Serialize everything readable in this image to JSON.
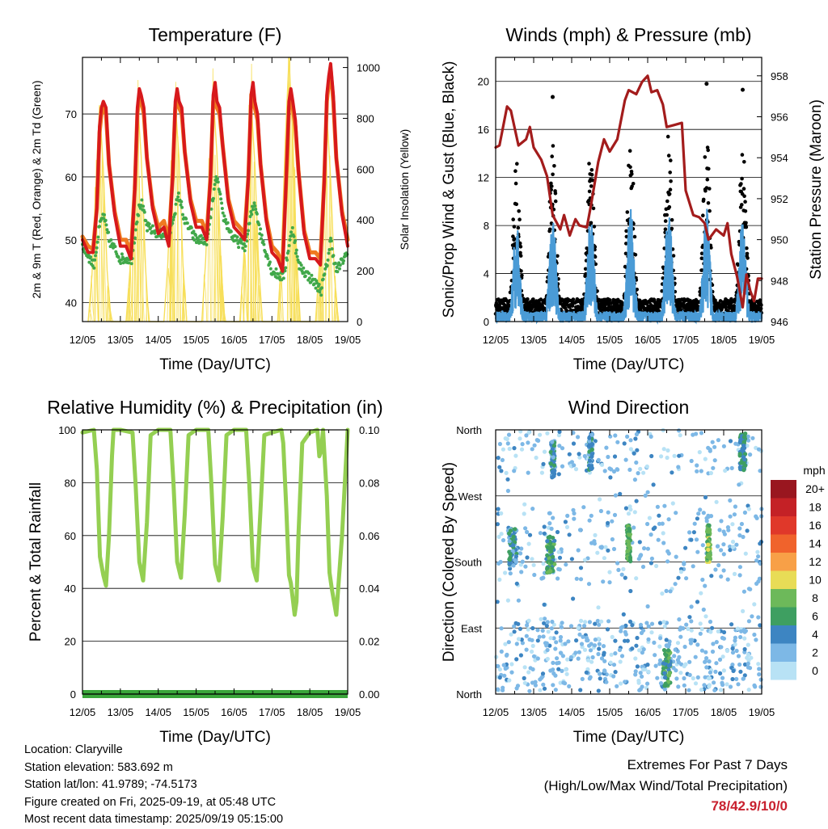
{
  "colors": {
    "temp_2m": "#d7191c",
    "temp_9m": "#ef7a21",
    "dewpoint": "#41a84a",
    "solar": "#f7df5a",
    "gust": "#000000",
    "wind": "#4a9bd6",
    "pressure": "#a31c1c",
    "rh": "#94cf52",
    "precip": "#3aa53a",
    "extremes_value": "#c8202e"
  },
  "footer": {
    "location": "Location: Claryville",
    "elevation": "Station elevation: 583.692 m",
    "latlon": "Station lat/lon: 41.9789; -74.5173",
    "created": "Figure created on Fri, 2025-09-19, at 05:48 UTC",
    "recent": "Most recent data timestamp: 2025/09/19 05:15:00"
  },
  "extremes": {
    "title": "Extremes For Past 7 Days",
    "subtitle": "(High/Low/Max Wind/Total Precipitation)",
    "value": "78/42.9/10/0"
  },
  "chart_data": [
    {
      "id": "temperature",
      "type": "line",
      "title": "Temperature (F)",
      "xlabel": "Time (Day/UTC)",
      "ylabel": "2m & 9m T (Red, Orange) & 2m Td (Green)",
      "ylabel_right": "Solar Insolation (Yellow)",
      "xticks": [
        "12/05",
        "13/05",
        "14/05",
        "15/05",
        "16/05",
        "17/05",
        "18/05",
        "19/05"
      ],
      "xlim": [
        0,
        7
      ],
      "ylim": [
        37,
        79
      ],
      "yticks": [
        40,
        50,
        60,
        70
      ],
      "ylim_right": [
        0,
        1040
      ],
      "yticks_right": [
        0,
        200,
        400,
        600,
        800,
        1000
      ],
      "grid": true,
      "series": [
        {
          "color_key": "temp_2m",
          "x": [
            0,
            0.15,
            0.28,
            0.38,
            0.45,
            0.5,
            0.55,
            0.62,
            0.7,
            0.85,
            1,
            1.15,
            1.28,
            1.38,
            1.45,
            1.5,
            1.55,
            1.62,
            1.7,
            1.85,
            2,
            2.15,
            2.28,
            2.38,
            2.45,
            2.5,
            2.55,
            2.62,
            2.7,
            2.85,
            3,
            3.15,
            3.28,
            3.38,
            3.45,
            3.5,
            3.55,
            3.62,
            3.7,
            3.85,
            4,
            4.15,
            4.28,
            4.38,
            4.45,
            4.5,
            4.55,
            4.62,
            4.7,
            4.85,
            5,
            5.15,
            5.28,
            5.38,
            5.45,
            5.5,
            5.55,
            5.62,
            5.7,
            5.85,
            6,
            6.15,
            6.28,
            6.38,
            6.45,
            6.5,
            6.55,
            6.62,
            6.7,
            6.85,
            7
          ],
          "y": [
            50,
            48,
            48,
            55,
            68,
            71,
            72,
            71,
            62,
            54,
            49,
            49,
            47,
            58,
            71,
            74,
            73,
            71,
            63,
            55,
            51,
            52,
            49,
            60,
            72,
            74,
            72,
            71,
            64,
            56,
            52,
            52,
            50,
            60,
            73,
            75,
            72,
            71,
            65,
            56,
            52,
            51,
            50,
            60,
            73,
            75,
            72,
            70,
            62,
            53,
            48,
            47,
            45,
            60,
            72,
            74,
            72,
            69,
            61,
            51,
            47,
            47,
            46,
            59,
            73,
            76,
            78,
            73,
            63,
            54,
            49
          ]
        },
        {
          "color_key": "temp_9m",
          "x": [
            0,
            0.15,
            0.28,
            0.38,
            0.45,
            0.5,
            0.55,
            0.62,
            0.7,
            0.85,
            1,
            1.15,
            1.28,
            1.38,
            1.45,
            1.5,
            1.55,
            1.62,
            1.7,
            1.85,
            2,
            2.15,
            2.28,
            2.38,
            2.45,
            2.5,
            2.55,
            2.62,
            2.7,
            2.85,
            3,
            3.15,
            3.28,
            3.38,
            3.45,
            3.5,
            3.55,
            3.62,
            3.7,
            3.85,
            4,
            4.15,
            4.28,
            4.38,
            4.45,
            4.5,
            4.55,
            4.62,
            4.7,
            4.85,
            5,
            5.15,
            5.28,
            5.38,
            5.45,
            5.5,
            5.55,
            5.62,
            5.7,
            5.85,
            6,
            6.15,
            6.28,
            6.38,
            6.45,
            6.5,
            6.55,
            6.62,
            6.7,
            6.85,
            7
          ],
          "y": [
            50.5,
            49,
            48.5,
            55,
            67,
            70,
            71,
            70,
            62,
            54.5,
            50,
            50,
            48,
            58,
            70,
            73,
            72,
            70,
            63,
            55.5,
            52,
            53,
            50,
            60,
            71,
            73,
            71,
            70,
            64,
            56.5,
            53,
            53,
            51,
            60,
            72,
            74,
            71,
            70,
            65,
            56.5,
            53,
            52,
            51,
            60,
            72,
            74,
            71,
            69,
            62,
            53.5,
            49,
            48,
            46,
            60,
            71,
            73,
            71,
            68,
            61,
            51.5,
            48,
            48,
            47,
            59,
            72,
            75,
            77,
            72,
            63,
            54.5,
            50
          ]
        },
        {
          "color_key": "dewpoint",
          "x": [
            0,
            0.3,
            0.45,
            0.55,
            0.7,
            1,
            1.3,
            1.45,
            1.55,
            1.7,
            2,
            2.3,
            2.45,
            2.55,
            2.7,
            3,
            3.3,
            3.45,
            3.55,
            3.7,
            4,
            4.3,
            4.45,
            4.55,
            4.7,
            5,
            5.3,
            5.45,
            5.55,
            5.7,
            6,
            6.3,
            6.45,
            6.55,
            6.7,
            7
          ],
          "y": [
            49,
            46,
            52,
            54,
            50,
            47,
            47,
            54,
            56,
            52,
            51,
            51,
            55,
            57,
            53,
            50,
            50,
            57,
            60,
            54,
            50,
            49,
            54,
            56,
            51,
            45,
            44,
            49,
            52,
            46,
            44,
            42,
            46,
            50,
            45,
            48
          ]
        },
        {
          "color_key": "solar",
          "axis": "right",
          "x": [
            0.15,
            0.25,
            0.35,
            0.45,
            0.55,
            0.65,
            0.75,
            1.15,
            1.25,
            1.35,
            1.45,
            1.55,
            1.65,
            1.75,
            2.15,
            2.25,
            2.35,
            2.45,
            2.55,
            2.65,
            2.75,
            3.15,
            3.25,
            3.35,
            3.45,
            3.55,
            3.65,
            3.75,
            4.15,
            4.25,
            4.35,
            4.45,
            4.55,
            4.65,
            4.75,
            5.15,
            5.25,
            5.35,
            5.45,
            5.55,
            5.65,
            5.75,
            6.15,
            6.25,
            6.35,
            6.45,
            6.55,
            6.65,
            6.75
          ],
          "y": [
            0,
            180,
            520,
            850,
            600,
            200,
            0,
            0,
            200,
            550,
            880,
            650,
            250,
            0,
            0,
            220,
            600,
            860,
            640,
            230,
            0,
            0,
            240,
            620,
            890,
            660,
            250,
            0,
            0,
            230,
            590,
            870,
            620,
            220,
            0,
            0,
            260,
            700,
            1040,
            720,
            260,
            0,
            0,
            220,
            580,
            820,
            560,
            180,
            0
          ]
        }
      ]
    },
    {
      "id": "winds",
      "type": "scatter",
      "title": "Winds (mph) & Pressure (mb)",
      "xlabel": "Time (Day/UTC)",
      "ylabel": "Sonic/Prop Wind & Gust (Blue, Black)",
      "ylabel_right": "Station Pressure (Maroon)",
      "xticks": [
        "12/05",
        "13/05",
        "14/05",
        "15/05",
        "16/05",
        "17/05",
        "18/05",
        "19/05"
      ],
      "xlim": [
        0,
        7
      ],
      "ylim": [
        0,
        22
      ],
      "yticks": [
        0,
        4,
        8,
        12,
        16,
        20
      ],
      "ylim_right": [
        946,
        958.9
      ],
      "yticks_right": [
        946,
        948,
        950,
        952,
        954,
        956,
        958
      ],
      "grid": true,
      "gust_peaks": [
        {
          "day": 0.55,
          "peak": 13
        },
        {
          "day": 1.5,
          "peak": 14
        },
        {
          "day": 2.5,
          "peak": 14
        },
        {
          "day": 3.55,
          "peak": 15
        },
        {
          "day": 4.55,
          "peak": 15
        },
        {
          "day": 5.55,
          "peak": 15
        },
        {
          "day": 6.5,
          "peak": 14
        }
      ],
      "gust_outliers": [
        {
          "x": 1.5,
          "y": 18.7
        },
        {
          "x": 5.55,
          "y": 19.8
        },
        {
          "x": 6.5,
          "y": 19.3
        }
      ],
      "pressure": {
        "x": [
          0,
          0.1,
          0.3,
          0.4,
          0.6,
          0.8,
          0.9,
          1.0,
          1.2,
          1.35,
          1.5,
          1.7,
          1.8,
          1.95,
          2.1,
          2.2,
          2.4,
          2.5,
          2.7,
          2.85,
          3.0,
          3.2,
          3.4,
          3.5,
          3.7,
          3.85,
          4.0,
          4.1,
          4.25,
          4.4,
          4.5,
          4.7,
          4.9,
          5.0,
          5.2,
          5.35,
          5.5,
          5.6,
          5.8,
          6.0,
          6.1,
          6.2,
          6.35,
          6.5,
          6.6,
          6.7,
          6.8,
          6.9,
          7.0
        ],
        "y": [
          954.5,
          954.6,
          956.5,
          956.3,
          954.6,
          954.9,
          955.5,
          954.5,
          953.9,
          953.1,
          951.2,
          950.5,
          951.2,
          950.2,
          951.0,
          950.7,
          950.6,
          951.6,
          953.8,
          954.9,
          954.3,
          954.9,
          956.8,
          957.3,
          957.1,
          957.7,
          958.0,
          957.2,
          957.3,
          956.6,
          955.5,
          955.6,
          955.7,
          952.4,
          951.2,
          951.1,
          950.8,
          950.0,
          950.5,
          950.2,
          950.8,
          949.3,
          948.2,
          946.7,
          948.3,
          947.5,
          947.0,
          948.1,
          948.1
        ]
      }
    },
    {
      "id": "humidity",
      "type": "line",
      "title": "Relative Humidity (%) & Precipitation (in)",
      "xlabel": "Time (Day/UTC)",
      "ylabel": "Percent & Total Rainfall",
      "xticks": [
        "12/05",
        "13/05",
        "14/05",
        "15/05",
        "16/05",
        "17/05",
        "18/05",
        "19/05"
      ],
      "xlim": [
        0,
        7
      ],
      "ylim": [
        0,
        100
      ],
      "yticks": [
        0,
        20,
        40,
        60,
        80,
        100
      ],
      "ylim_right": [
        0,
        0.1
      ],
      "yticks_right": [
        "0.00",
        "0.02",
        "0.04",
        "0.06",
        "0.08",
        "0.10"
      ],
      "grid": true,
      "series": [
        {
          "color_key": "rh",
          "x": [
            0,
            0.3,
            0.38,
            0.46,
            0.55,
            0.62,
            0.7,
            0.78,
            0.82,
            1,
            1.32,
            1.4,
            1.5,
            1.6,
            1.7,
            1.8,
            2,
            2.32,
            2.4,
            2.5,
            2.6,
            2.7,
            2.8,
            3,
            3.32,
            3.4,
            3.5,
            3.6,
            3.7,
            3.8,
            4,
            4.32,
            4.4,
            4.5,
            4.6,
            4.7,
            4.8,
            5,
            5.25,
            5.3,
            5.38,
            5.45,
            5.5,
            5.55,
            5.6,
            5.65,
            5.7,
            5.8,
            6,
            6.2,
            6.25,
            6.3,
            6.35,
            6.45,
            6.52,
            6.58,
            6.7,
            6.85,
            7
          ],
          "y": [
            99,
            100,
            85,
            52,
            45,
            41,
            60,
            90,
            100,
            100,
            99,
            80,
            50,
            43,
            65,
            98,
            100,
            100,
            80,
            50,
            44,
            68,
            98,
            100,
            100,
            80,
            49,
            43,
            67,
            98,
            100,
            100,
            80,
            48,
            43,
            70,
            98,
            99,
            100,
            95,
            70,
            45,
            42,
            36,
            30,
            35,
            60,
            95,
            99,
            100,
            90,
            92,
            100,
            75,
            46,
            40,
            30,
            60,
            100
          ]
        },
        {
          "color_key": "precip",
          "axis": "right",
          "x": [
            0,
            7
          ],
          "y": [
            0,
            0
          ]
        }
      ]
    },
    {
      "id": "direction",
      "type": "scatter",
      "title": "Wind Direction",
      "xlabel": "Time (Day/UTC)",
      "ylabel": "Direction (Colored By Speed)",
      "xticks": [
        "12/05",
        "13/05",
        "14/05",
        "15/05",
        "16/05",
        "17/05",
        "18/05",
        "19/05"
      ],
      "xlim": [
        0,
        7
      ],
      "ylim": [
        0,
        360
      ],
      "yticks": [
        "North",
        "East",
        "South",
        "West",
        "North"
      ],
      "grid": true,
      "colorbar": {
        "title": "mph",
        "labels": [
          "20+",
          "18",
          "16",
          "14",
          "12",
          "10",
          "8",
          "6",
          "4",
          "2",
          "0"
        ],
        "colors": [
          "#99161f",
          "#c42126",
          "#e0382a",
          "#f0632c",
          "#f8a047",
          "#e8dc56",
          "#6db95a",
          "#3e9f61",
          "#3d85c2",
          "#7db8e6",
          "#b8e2f5"
        ]
      },
      "clusters": [
        {
          "x": 0.45,
          "dir": 200,
          "spread": 0.2,
          "speed": 4
        },
        {
          "x": 1.45,
          "dir": 190,
          "spread": 0.2,
          "speed": 6
        },
        {
          "x": 1.5,
          "dir": 320,
          "spread": 0.1,
          "speed": 4
        },
        {
          "x": 2.5,
          "dir": 330,
          "spread": 0.1,
          "speed": 4
        },
        {
          "x": 3.5,
          "dir": 205,
          "spread": 0.1,
          "speed": 7
        },
        {
          "x": 4.5,
          "dir": 35,
          "spread": 0.2,
          "speed": 6
        },
        {
          "x": 5.6,
          "dir": 205,
          "spread": 0.1,
          "speed": 8
        },
        {
          "x": 6.5,
          "dir": 330,
          "spread": 0.15,
          "speed": 5
        }
      ]
    }
  ]
}
